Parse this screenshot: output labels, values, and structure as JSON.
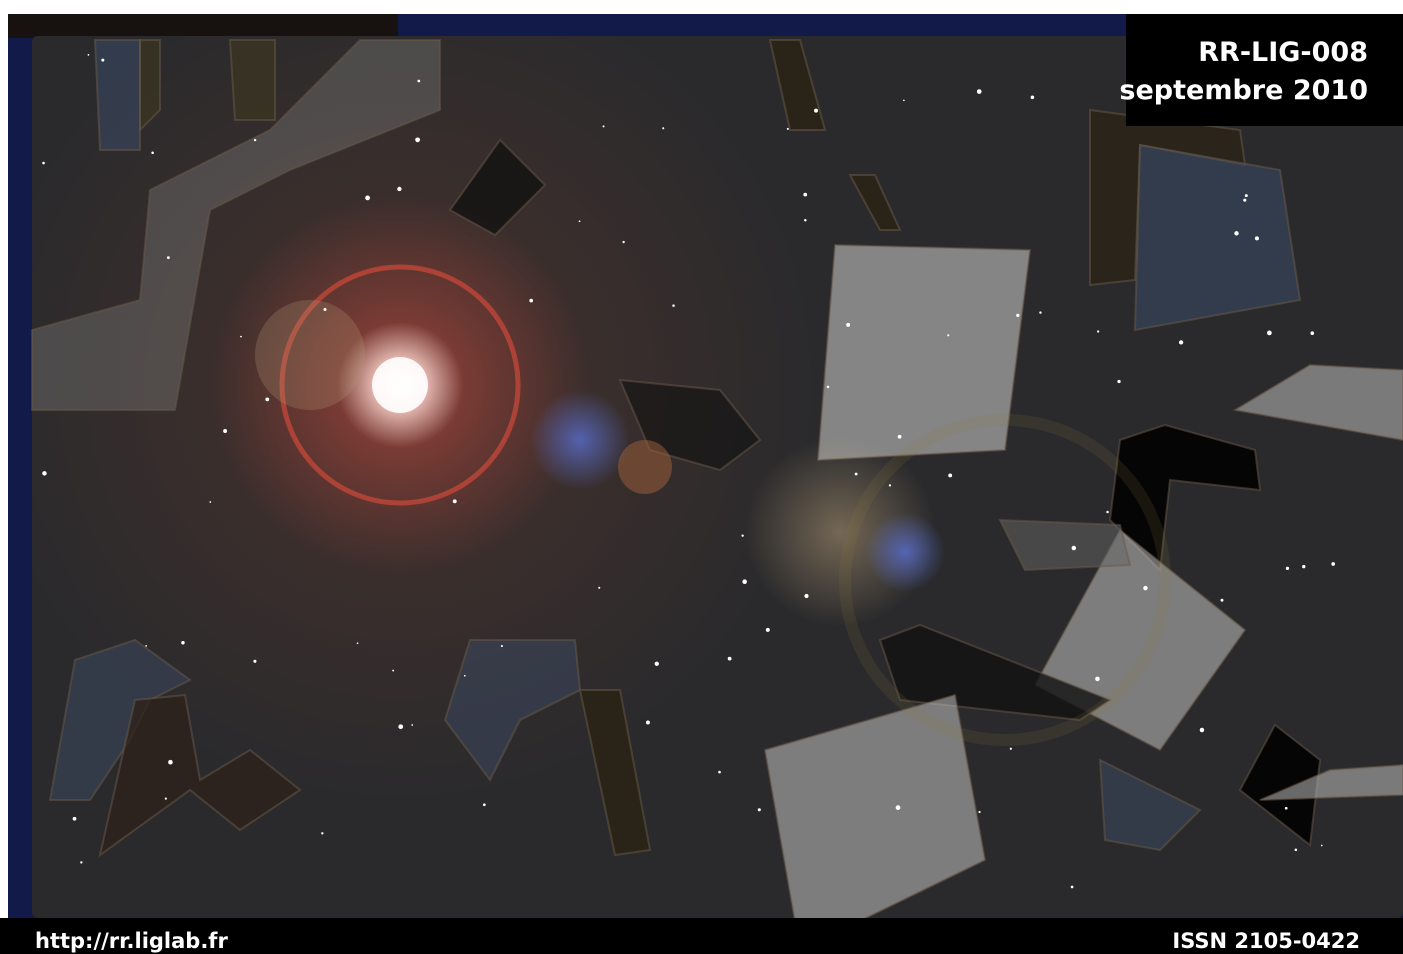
{
  "header": {
    "code": "RR-LIG-008",
    "date": "septembre 2010"
  },
  "footer": {
    "url": "http://rr.liglab.fr",
    "issn": "ISSN 2105-0422"
  }
}
